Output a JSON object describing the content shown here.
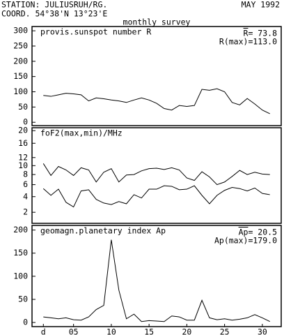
{
  "header": {
    "station": "STATION: JULIUSRUH/RG.",
    "date": "MAY 1992",
    "coord": "COORD. 54°38'N 13°23'E",
    "subtitle": "monthly survey"
  },
  "chart_data": [
    {
      "type": "line",
      "title": "provis.sunspot number R",
      "annotations": [
        "R= 73.8",
        "R(max)=113.0"
      ],
      "x": [
        1,
        2,
        3,
        4,
        5,
        6,
        7,
        8,
        9,
        10,
        11,
        12,
        13,
        14,
        15,
        16,
        17,
        18,
        19,
        20,
        21,
        22,
        23,
        24,
        25,
        26,
        27,
        28,
        29,
        30,
        31
      ],
      "xlim": [
        -0.5,
        32.5
      ],
      "ylim": [
        -11,
        314
      ],
      "yticks": [
        0,
        50,
        100,
        150,
        200,
        250,
        300
      ],
      "series": [
        {
          "color": "#000000",
          "values": [
            88,
            85,
            90,
            95,
            93,
            90,
            70,
            80,
            77,
            73,
            70,
            65,
            73,
            80,
            73,
            62,
            45,
            40,
            55,
            52,
            55,
            108,
            105,
            110,
            100,
            65,
            57,
            78,
            60,
            40,
            28
          ]
        }
      ]
    },
    {
      "type": "line",
      "title": "foF2(max,min)/MHz",
      "yscale": "sqrt",
      "x": [
        1,
        2,
        3,
        4,
        5,
        6,
        7,
        8,
        9,
        10,
        11,
        12,
        13,
        14,
        15,
        16,
        17,
        18,
        19,
        20,
        21,
        22,
        23,
        24,
        25,
        26,
        27,
        28,
        29,
        30,
        31
      ],
      "xlim": [
        -0.5,
        32.5
      ],
      "ylim": [
        1,
        21
      ],
      "yticks": [
        2,
        4,
        6,
        8,
        10,
        12,
        16,
        20
      ],
      "series": [
        {
          "color": "#000000",
          "values": [
            10.5,
            7.8,
            9.8,
            9,
            7.8,
            9.5,
            9,
            6.5,
            8.5,
            9.3,
            6.5,
            7.9,
            8,
            8.8,
            9.3,
            9.4,
            9.1,
            9.5,
            9,
            7.3,
            6.8,
            8.6,
            7.5,
            6,
            6.5,
            7.6,
            8.9,
            8,
            8.5,
            8.1,
            8
          ]
        },
        {
          "color": "#000000",
          "values": [
            5.3,
            4.2,
            5.2,
            3.2,
            2.6,
            4.9,
            5.1,
            3.6,
            3.1,
            2.9,
            3.3,
            3,
            4.3,
            3.8,
            5.2,
            5.2,
            5.8,
            5.7,
            5.1,
            5.2,
            5.8,
            4.2,
            3,
            4.2,
            5,
            5.5,
            5.3,
            4.9,
            5.4,
            4.5,
            4.3
          ]
        }
      ]
    },
    {
      "type": "line",
      "title": "geomagn.planetary index Ap",
      "annotations": [
        "Ap= 20.5",
        "Ap(max)=179.0"
      ],
      "x": [
        1,
        2,
        3,
        4,
        5,
        6,
        7,
        8,
        9,
        10,
        11,
        12,
        13,
        14,
        15,
        16,
        17,
        18,
        19,
        20,
        21,
        22,
        23,
        24,
        25,
        26,
        27,
        28,
        29,
        30,
        31
      ],
      "xlim": [
        -0.5,
        32.5
      ],
      "xticks": [
        {
          "value": 1,
          "label": "d"
        },
        {
          "value": 5,
          "label": "05"
        },
        10,
        15,
        20,
        25,
        30
      ],
      "ylim": [
        -9,
        210
      ],
      "yticks": [
        0,
        50,
        100,
        150,
        200
      ],
      "series": [
        {
          "color": "#000000",
          "values": [
            12,
            10,
            8,
            10,
            6,
            5,
            12,
            28,
            37,
            179,
            70,
            8,
            18,
            2,
            4,
            3,
            2,
            14,
            12,
            5,
            5,
            48,
            10,
            6,
            8,
            5,
            7,
            10,
            17,
            10,
            2
          ]
        }
      ]
    }
  ]
}
